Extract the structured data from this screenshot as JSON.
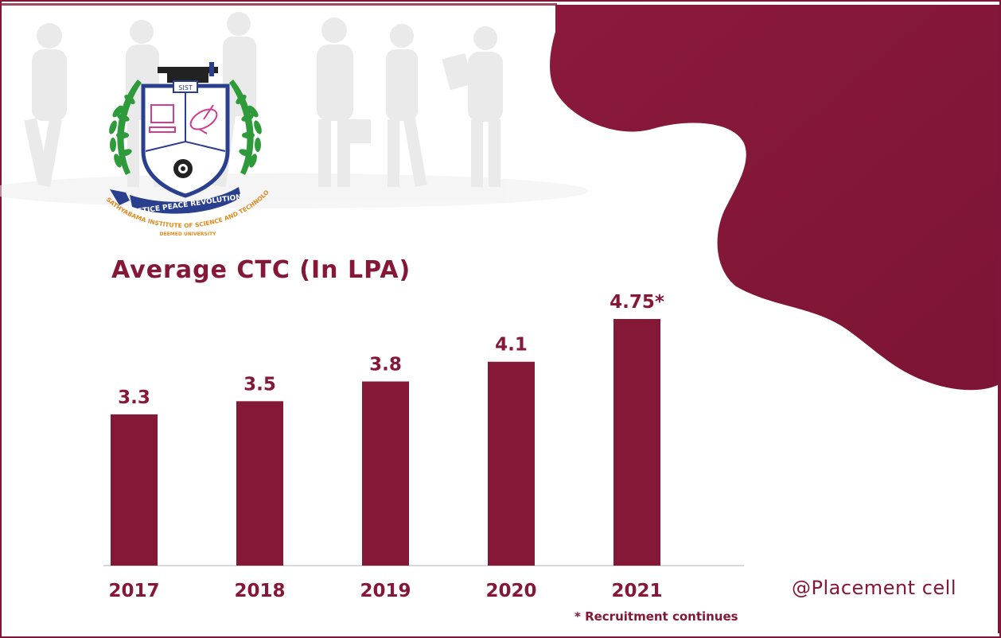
{
  "colors": {
    "accent": "#851737",
    "blob": "#8b1a3d",
    "bar": "#851737",
    "logo_green": "#2e9a3a",
    "logo_blue": "#2b3f8f",
    "logo_orange": "#e08a1e",
    "logo_pink": "#d23b8e"
  },
  "logo": {
    "cap_text": "SIST",
    "ribbon_text": "JUSTICE PEACE REVOLUTION",
    "arc_text": "SATHYABAMA INSTITUTE OF SCIENCE AND TECHNOLOGY",
    "sub_text": "DEEMED UNIVERSITY"
  },
  "chart_data": {
    "type": "bar",
    "title": "Average CTC (In LPA)",
    "categories": [
      "2017",
      "2018",
      "2019",
      "2020",
      "2021"
    ],
    "values": [
      3.3,
      3.5,
      3.8,
      4.1,
      4.75
    ],
    "value_labels": [
      "3.3",
      "3.5",
      "3.8",
      "4.1",
      "4.75*"
    ],
    "ylim": [
      1.0,
      4.75
    ],
    "grid": false,
    "axes_lines": "x-baseline-only"
  },
  "handle": "@Placement cell",
  "footnote": "* Recruitment continues"
}
